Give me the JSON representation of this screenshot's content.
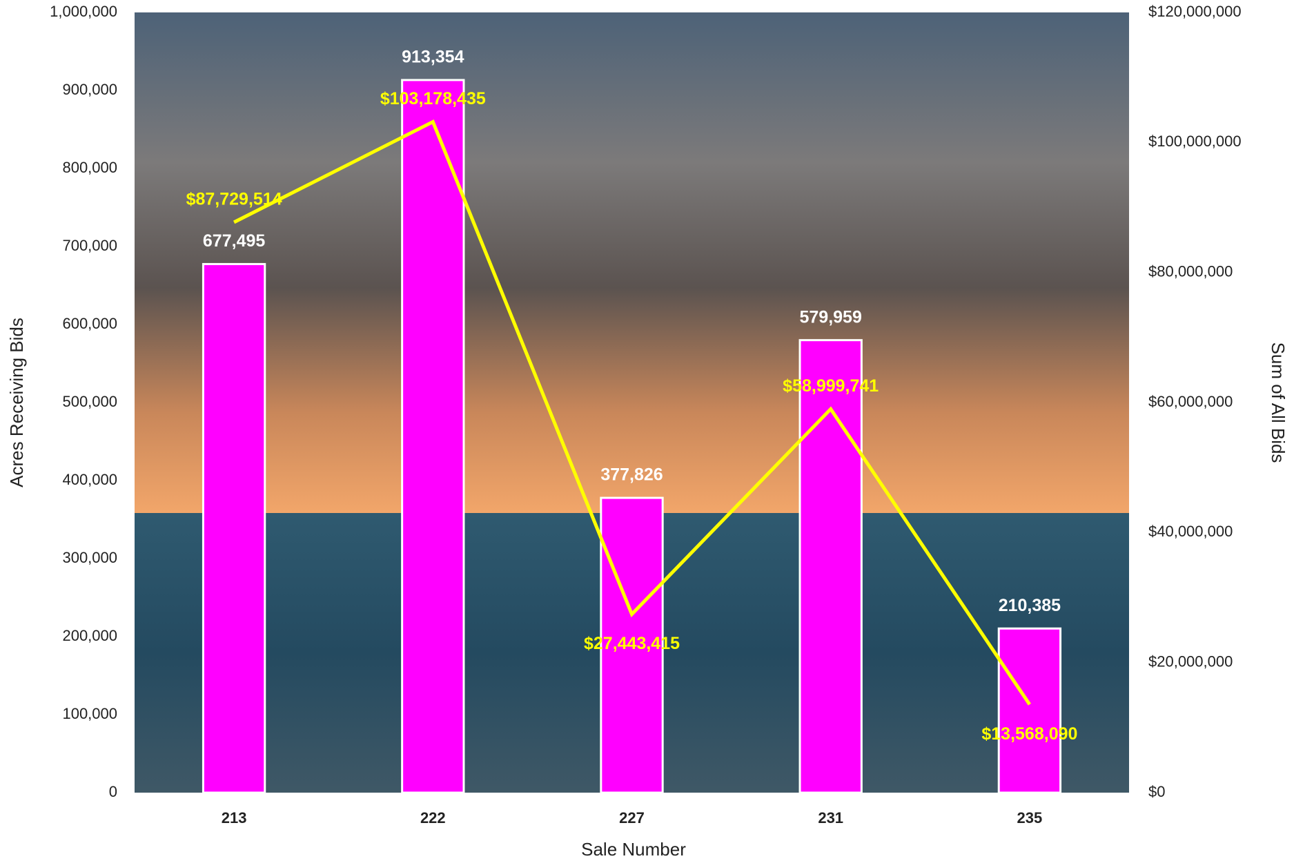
{
  "chart_data": {
    "type": "bar",
    "x_label": "Sale Number",
    "y_label": "Acres Receiving Bids",
    "y2_label": "Sum of All Bids",
    "categories": [
      "213",
      "222",
      "227",
      "231",
      "235"
    ],
    "series": [
      {
        "type": "bar",
        "color": "#ff00ff",
        "values": [
          677495,
          913354,
          377826,
          579959,
          210385
        ],
        "value_labels": [
          "677,495",
          "913,354",
          "377,826",
          "579,959",
          "210,385"
        ]
      },
      {
        "type": "line",
        "axis": "y2",
        "color": "#ffff00",
        "values": [
          87729514,
          103178435,
          27443415,
          58999741,
          13568090
        ],
        "value_labels": [
          "$87,729,514",
          "$103,178,435",
          "$27,443,415",
          "$58,999,741",
          "$13,568,090"
        ]
      }
    ],
    "ylim": [
      0,
      1000000
    ],
    "yticks": [
      0,
      {
        "value": 100000,
        "label": "100,000"
      },
      {
        "value": 200000,
        "label": "200,000"
      },
      {
        "value": 300000,
        "label": "300,000"
      },
      {
        "value": 400000,
        "label": "400,000"
      },
      {
        "value": 500000,
        "label": "500,000"
      },
      {
        "value": 600000,
        "label": "600,000"
      },
      {
        "value": 700000,
        "label": "700,000"
      },
      {
        "value": 800000,
        "label": "800,000"
      },
      {
        "value": 900000,
        "label": "900,000"
      },
      {
        "value": 1000000,
        "label": "1,000,000"
      }
    ],
    "y2lim": [
      0,
      120000000
    ],
    "y2ticks": [
      {
        "value": 0,
        "label": "$0"
      },
      {
        "value": 20000000,
        "label": "$20,000,000"
      },
      {
        "value": 40000000,
        "label": "$40,000,000"
      },
      {
        "value": 60000000,
        "label": "$60,000,000"
      },
      {
        "value": 80000000,
        "label": "$80,000,000"
      },
      {
        "value": 100000000,
        "label": "$100,000,000"
      },
      {
        "value": 120000000,
        "label": "$120,000,000"
      }
    ],
    "grid": false
  }
}
